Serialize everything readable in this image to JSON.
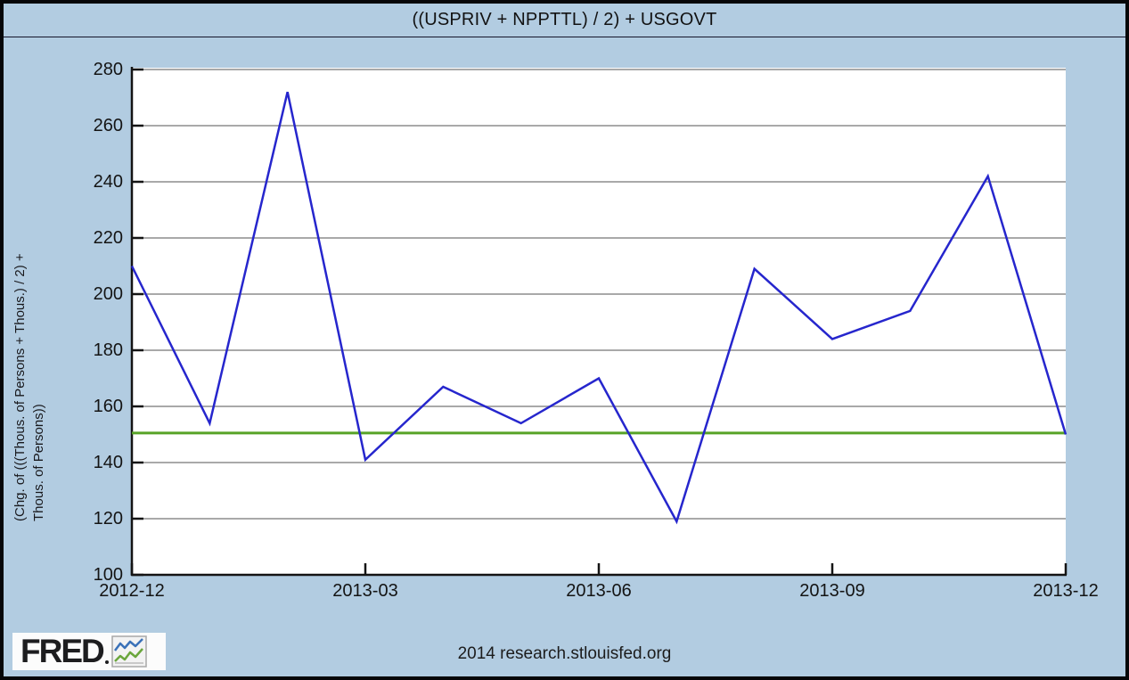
{
  "chart": {
    "title": "((USPRIV + NPPTTL) / 2) + USGOVT",
    "y_axis_label_line1": "(Chg. of (((Thous. of Persons + Thous.) / 2) +",
    "y_axis_label_line2": "Thous. of Persons))"
  },
  "footer": {
    "attribution": "2014 research.stlouisfed.org",
    "logo_text": "FRED"
  },
  "chart_data": {
    "type": "line",
    "title": "((USPRIV + NPPTTL) / 2) + USGOVT",
    "xlabel": "",
    "ylabel": "(Chg. of (((Thous. of Persons + Thous.) / 2) + Thous. of Persons))",
    "x": [
      "2012-12",
      "2013-01",
      "2013-02",
      "2013-03",
      "2013-04",
      "2013-05",
      "2013-06",
      "2013-07",
      "2013-08",
      "2013-09",
      "2013-10",
      "2013-11",
      "2013-12"
    ],
    "x_tick_labels": [
      "2012-12",
      "2013-03",
      "2013-06",
      "2013-09",
      "2013-12"
    ],
    "x_tick_indices": [
      0,
      3,
      6,
      9,
      12
    ],
    "ylim": [
      100,
      280
    ],
    "yticks": [
      100,
      120,
      140,
      160,
      180,
      200,
      220,
      240,
      260,
      280
    ],
    "grid": true,
    "legend": "none",
    "series": [
      {
        "name": "((USPRIV + NPPTTL) / 2) + USGOVT monthly change, thousands of persons",
        "color": "#2626cd",
        "width": 2.5,
        "values": [
          210,
          154,
          272,
          141,
          167,
          154,
          170,
          119,
          209,
          184,
          194,
          242,
          150
        ]
      },
      {
        "name": "flat reference line",
        "color": "#57a327",
        "width": 3,
        "values": [
          150.5,
          150.5,
          150.5,
          150.5,
          150.5,
          150.5,
          150.5,
          150.5,
          150.5,
          150.5,
          150.5,
          150.5,
          150.5
        ]
      }
    ]
  },
  "colors": {
    "background": "#b2cce1",
    "plot_background": "#ffffff",
    "gridline": "#a9a9a9",
    "axis": "#141414",
    "blue_series": "#2626cd",
    "green_series": "#57a327",
    "text": "#141414"
  }
}
